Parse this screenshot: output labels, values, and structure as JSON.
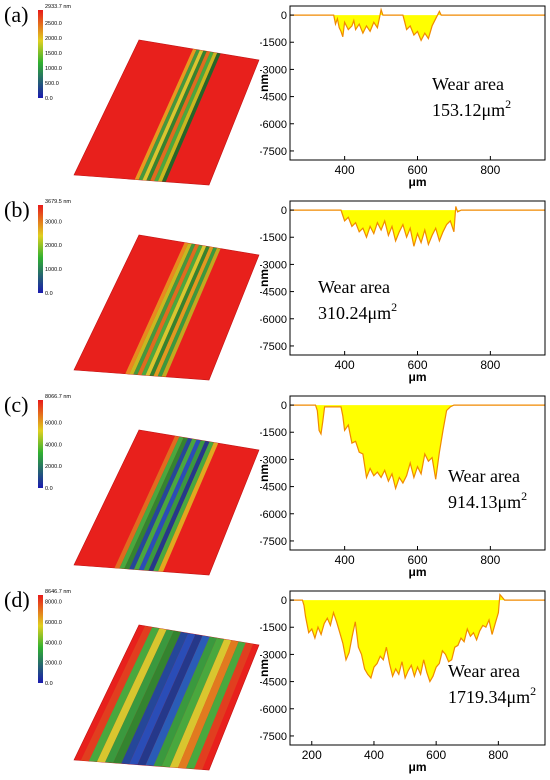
{
  "panels": [
    {
      "label": "(a)",
      "surface": {
        "max_label": "2933.7 nm",
        "ticks": [
          "2500.0",
          "2000.0",
          "1500.0",
          "1000.0",
          "500.0",
          "0.0"
        ]
      },
      "profile": {
        "wear_title": "Wear area",
        "wear_value": "153.12μm",
        "wear_sup": "2",
        "wear_pos": "upper"
      }
    },
    {
      "label": "(b)",
      "surface": {
        "max_label": "3679.5 nm",
        "ticks": [
          "3000.0",
          "2000.0",
          "1000.0",
          "0.0"
        ]
      },
      "profile": {
        "wear_title": "Wear area",
        "wear_value": "310.24μm",
        "wear_sup": "2",
        "wear_pos": "left"
      }
    },
    {
      "label": "(c)",
      "surface": {
        "max_label": "8066.7 nm",
        "ticks": [
          "6000.0",
          "4000.0",
          "2000.0",
          "0.0"
        ]
      },
      "profile": {
        "wear_title": "Wear area",
        "wear_value": "914.13μm",
        "wear_sup": "2",
        "wear_pos": "lower"
      }
    },
    {
      "label": "(d)",
      "surface": {
        "max_label": "8646.7 nm",
        "ticks": [
          "8000.0",
          "6000.0",
          "4000.0",
          "2000.0",
          "0.0"
        ]
      },
      "profile": {
        "wear_title": "Wear area",
        "wear_value": "1719.34μm",
        "wear_sup": "2",
        "wear_pos": "lower"
      }
    }
  ],
  "chart_data": [
    {
      "type": "area",
      "xlabel": "μm",
      "ylabel": "nm",
      "xlim": [
        250,
        950
      ],
      "ylim": [
        -8000,
        500
      ],
      "xticks": [
        400,
        600,
        800
      ],
      "yticks": [
        0,
        -1500,
        -3000,
        -4500,
        -6000,
        -7500
      ],
      "colors": {
        "line": "#f08a00",
        "fill": "#ffff00"
      },
      "x": [
        250,
        370,
        375,
        380,
        385,
        390,
        395,
        400,
        410,
        420,
        425,
        430,
        440,
        450,
        460,
        470,
        480,
        490,
        495,
        500,
        505,
        560,
        565,
        570,
        580,
        590,
        600,
        610,
        620,
        630,
        640,
        650,
        660,
        665,
        670,
        950
      ],
      "y": [
        0,
        0,
        -500,
        -200,
        -700,
        -900,
        -1200,
        -400,
        -800,
        -600,
        -300,
        -800,
        -500,
        -1000,
        -600,
        -900,
        -400,
        -700,
        -200,
        300,
        0,
        0,
        -400,
        -800,
        -600,
        -1100,
        -900,
        -1400,
        -1000,
        -1300,
        -600,
        -200,
        200,
        0,
        0,
        0
      ]
    },
    {
      "type": "area",
      "xlabel": "μm",
      "ylabel": "nm",
      "xlim": [
        250,
        950
      ],
      "ylim": [
        -8000,
        500
      ],
      "xticks": [
        400,
        600,
        800
      ],
      "yticks": [
        0,
        -1500,
        -3000,
        -4500,
        -6000,
        -7500
      ],
      "colors": {
        "line": "#f08a00",
        "fill": "#ffff00"
      },
      "x": [
        250,
        390,
        395,
        400,
        410,
        420,
        430,
        440,
        450,
        460,
        470,
        480,
        490,
        500,
        510,
        520,
        530,
        540,
        550,
        560,
        570,
        580,
        590,
        600,
        610,
        620,
        630,
        640,
        650,
        660,
        670,
        680,
        690,
        700,
        705,
        710,
        720,
        950
      ],
      "y": [
        0,
        0,
        -300,
        -600,
        -400,
        -900,
        -700,
        -1200,
        -1000,
        -1500,
        -900,
        -1300,
        -700,
        -1100,
        -600,
        -1400,
        -900,
        -1700,
        -1200,
        -800,
        -1500,
        -1000,
        -2000,
        -1300,
        -1800,
        -1100,
        -1900,
        -1400,
        -1000,
        -1700,
        -1200,
        -800,
        -600,
        -1200,
        200,
        -100,
        0,
        0
      ]
    },
    {
      "type": "area",
      "xlabel": "μm",
      "ylabel": "nm",
      "xlim": [
        250,
        950
      ],
      "ylim": [
        -8000,
        500
      ],
      "xticks": [
        400,
        600,
        800
      ],
      "yticks": [
        0,
        -1500,
        -3000,
        -4500,
        -6000,
        -7500
      ],
      "colors": {
        "line": "#f08a00",
        "fill": "#ffff00"
      },
      "x": [
        250,
        320,
        325,
        330,
        335,
        340,
        345,
        390,
        395,
        400,
        410,
        420,
        430,
        440,
        450,
        460,
        470,
        480,
        490,
        500,
        510,
        520,
        530,
        540,
        550,
        560,
        570,
        580,
        590,
        600,
        610,
        620,
        630,
        640,
        650,
        660,
        670,
        680,
        690,
        700,
        950
      ],
      "y": [
        0,
        0,
        -300,
        -1400,
        -1600,
        -900,
        -100,
        -100,
        -600,
        -1400,
        -1100,
        -2100,
        -2000,
        -2600,
        -2700,
        -4000,
        -3500,
        -3900,
        -3700,
        -4000,
        -3600,
        -4200,
        -3800,
        -4600,
        -4000,
        -4300,
        -3900,
        -3200,
        -4000,
        -3400,
        -3800,
        -2700,
        -3100,
        -2900,
        -4100,
        -2600,
        -1400,
        -300,
        -100,
        0,
        0
      ]
    },
    {
      "type": "area",
      "xlabel": "μm",
      "ylabel": "nm",
      "xlim": [
        130,
        950
      ],
      "ylim": [
        -8000,
        500
      ],
      "xticks": [
        200,
        400,
        600,
        800
      ],
      "yticks": [
        0,
        -1500,
        -3000,
        -4500,
        -6000,
        -7500
      ],
      "colors": {
        "line": "#f08a00",
        "fill": "#ffff00"
      },
      "x": [
        130,
        170,
        175,
        180,
        190,
        200,
        210,
        220,
        230,
        240,
        250,
        260,
        270,
        280,
        290,
        300,
        310,
        320,
        330,
        340,
        350,
        360,
        370,
        380,
        390,
        400,
        410,
        420,
        430,
        440,
        450,
        460,
        470,
        480,
        490,
        500,
        510,
        520,
        530,
        540,
        550,
        560,
        570,
        580,
        590,
        600,
        610,
        620,
        630,
        640,
        650,
        660,
        670,
        680,
        690,
        700,
        710,
        720,
        730,
        740,
        750,
        760,
        770,
        780,
        790,
        800,
        805,
        810,
        820,
        950
      ],
      "y": [
        0,
        0,
        -300,
        -900,
        -1800,
        -1600,
        -2100,
        -1500,
        -1900,
        -1300,
        -1000,
        -1400,
        -700,
        -1200,
        -1800,
        -2400,
        -3300,
        -2900,
        -2000,
        -1200,
        -2600,
        -3000,
        -3800,
        -4100,
        -4300,
        -3700,
        -3500,
        -3100,
        -3300,
        -2600,
        -3500,
        -4200,
        -3800,
        -4100,
        -3400,
        -4300,
        -3900,
        -3600,
        -4200,
        -3700,
        -4100,
        -3300,
        -4000,
        -4500,
        -4200,
        -3700,
        -3500,
        -2800,
        -3000,
        -3400,
        -3300,
        -2600,
        -2500,
        -2100,
        -2300,
        -1600,
        -2000,
        -1800,
        -2200,
        -1700,
        -1400,
        -1500,
        -1100,
        -1900,
        -1300,
        -700,
        300,
        200,
        0,
        0
      ]
    }
  ]
}
